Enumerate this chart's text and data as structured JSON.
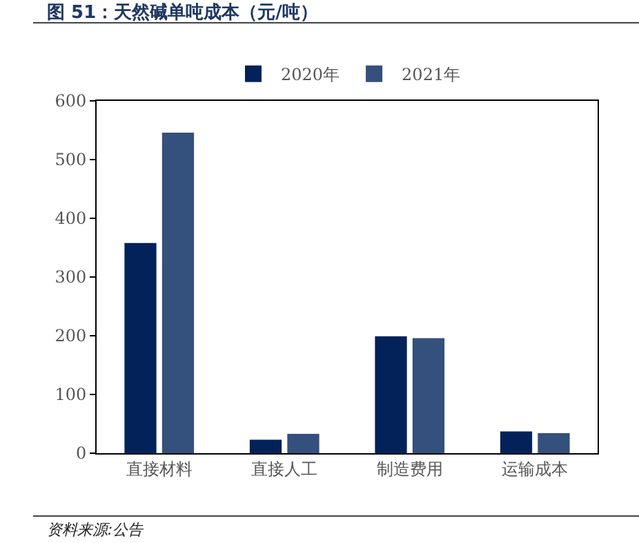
{
  "chart_data": {
    "type": "bar",
    "title": "图 51：天然碱单吨成本（元/吨）",
    "categories": [
      "直接材料",
      "直接人工",
      "制造费用",
      "运输成本"
    ],
    "series": [
      {
        "name": "2020年",
        "color": "#022259",
        "values": [
          358,
          23,
          199,
          37
        ]
      },
      {
        "name": "2021年",
        "color": "#34507c",
        "values": [
          546,
          33,
          196,
          34
        ]
      }
    ],
    "ylim": [
      0,
      600
    ],
    "yticks": [
      0,
      100,
      200,
      300,
      400,
      500,
      600
    ],
    "grid": false,
    "legend": "top",
    "annotations": [
      "资料来源:公告"
    ]
  }
}
